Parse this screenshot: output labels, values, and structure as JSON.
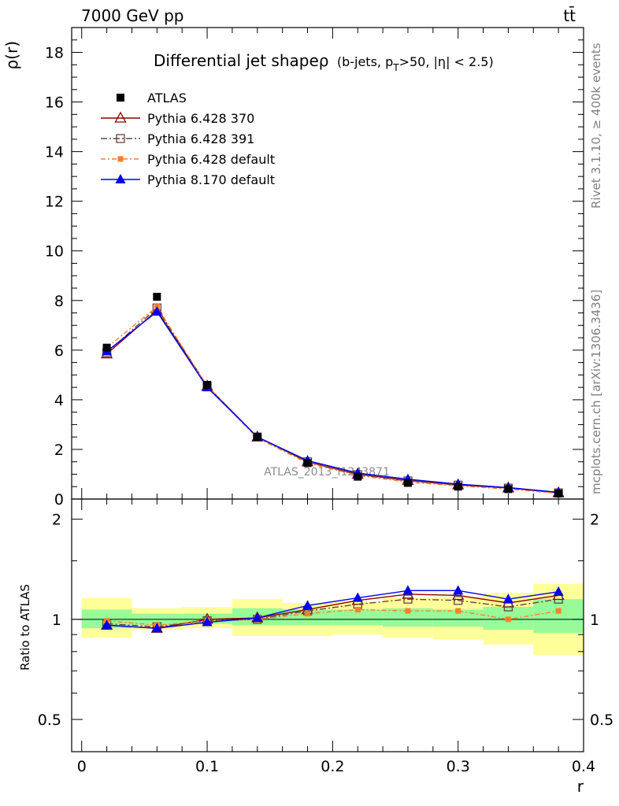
{
  "header": {
    "left": "7000 GeV pp",
    "right": "tt̄"
  },
  "side_text": {
    "rivet": "Rivet 3.1.10, ≥ 400k events",
    "mcplots": "mcplots.cern.ch [arXiv:1306.3436]"
  },
  "colors": {
    "data": "#000000",
    "p6_370": "#8b0000",
    "p6_391": "#6b4040",
    "p6_default": "#ff7f2a",
    "p8_default": "#0000ee",
    "band_inner": "#98fb98",
    "band_outer": "#ffff99"
  },
  "chart_data": [
    {
      "type": "line",
      "title_main": "Differential jet shapeρ",
      "title_sub": "(b-jets, p",
      "title_sub_T": "T",
      "title_sub_rest": ">50, |η| < 2.5)",
      "watermark": "ATLAS_2013_I1243871",
      "ylabel": "ρ(r)",
      "ylim": [
        0,
        19
      ],
      "xlim": [
        -0.008,
        0.4
      ],
      "yticks": [
        "0",
        "2",
        "4",
        "6",
        "8",
        "10",
        "12",
        "14",
        "16",
        "18"
      ],
      "x": [
        0.02,
        0.06,
        0.1,
        0.14,
        0.18,
        0.22,
        0.26,
        0.3,
        0.34,
        0.38
      ],
      "series": [
        {
          "name": "ATLAS",
          "values": [
            6.1,
            8.15,
            4.6,
            2.5,
            1.45,
            0.9,
            0.65,
            0.5,
            0.4,
            0.22
          ]
        },
        {
          "name": "Pythia 6.428 370",
          "values": [
            5.85,
            7.6,
            4.55,
            2.5,
            1.5,
            1.0,
            0.75,
            0.57,
            0.45,
            0.25
          ]
        },
        {
          "name": "Pythia 6.428 391",
          "values": [
            5.9,
            7.7,
            4.55,
            2.5,
            1.5,
            0.98,
            0.73,
            0.56,
            0.44,
            0.25
          ]
        },
        {
          "name": "Pythia 6.428 default",
          "values": [
            6.1,
            7.75,
            4.55,
            2.45,
            1.45,
            0.95,
            0.68,
            0.53,
            0.4,
            0.23
          ]
        },
        {
          "name": "Pythia 8.170 default",
          "values": [
            5.95,
            7.55,
            4.5,
            2.5,
            1.55,
            1.05,
            0.8,
            0.6,
            0.46,
            0.27
          ]
        }
      ]
    },
    {
      "type": "line",
      "ylabel": "Ratio to ATLAS",
      "xlabel": "r",
      "ylim": [
        0.4,
        2.3
      ],
      "log_y": true,
      "xlim": [
        -0.008,
        0.4
      ],
      "xticks": [
        "0",
        "0.1",
        "0.2",
        "0.3",
        "0.4"
      ],
      "yticks": [
        "0.5",
        "1",
        "2"
      ],
      "x": [
        0.02,
        0.06,
        0.1,
        0.14,
        0.18,
        0.22,
        0.26,
        0.3,
        0.34,
        0.38
      ],
      "band_edges": [
        0.0,
        0.04,
        0.08,
        0.12,
        0.16,
        0.2,
        0.24,
        0.28,
        0.32,
        0.36,
        0.4
      ],
      "band_inner": [
        [
          0.94,
          1.07
        ],
        [
          0.96,
          1.04
        ],
        [
          0.97,
          1.04
        ],
        [
          0.96,
          1.08
        ],
        [
          0.96,
          1.07
        ],
        [
          0.96,
          1.07
        ],
        [
          0.95,
          1.08
        ],
        [
          0.95,
          1.07
        ],
        [
          0.93,
          1.09
        ],
        [
          0.91,
          1.15
        ]
      ],
      "band_outer": [
        [
          0.88,
          1.16
        ],
        [
          0.93,
          1.08
        ],
        [
          0.94,
          1.09
        ],
        [
          0.89,
          1.15
        ],
        [
          0.89,
          1.12
        ],
        [
          0.9,
          1.13
        ],
        [
          0.88,
          1.16
        ],
        [
          0.87,
          1.17
        ],
        [
          0.84,
          1.2
        ],
        [
          0.78,
          1.28
        ]
      ],
      "series": [
        {
          "name": "Pythia 6.428 370",
          "values": [
            0.96,
            0.94,
            1.0,
            1.01,
            1.07,
            1.14,
            1.19,
            1.18,
            1.12,
            1.18
          ]
        },
        {
          "name": "Pythia 6.428 391",
          "values": [
            0.97,
            0.95,
            0.99,
            1.0,
            1.06,
            1.11,
            1.15,
            1.14,
            1.09,
            1.15
          ]
        },
        {
          "name": "Pythia 6.428 default",
          "values": [
            0.99,
            0.96,
            0.99,
            1.0,
            1.04,
            1.07,
            1.06,
            1.06,
            1.0,
            1.06
          ]
        },
        {
          "name": "Pythia 8.170 default",
          "values": [
            0.96,
            0.94,
            0.98,
            1.01,
            1.1,
            1.16,
            1.22,
            1.22,
            1.15,
            1.21
          ]
        }
      ]
    }
  ]
}
